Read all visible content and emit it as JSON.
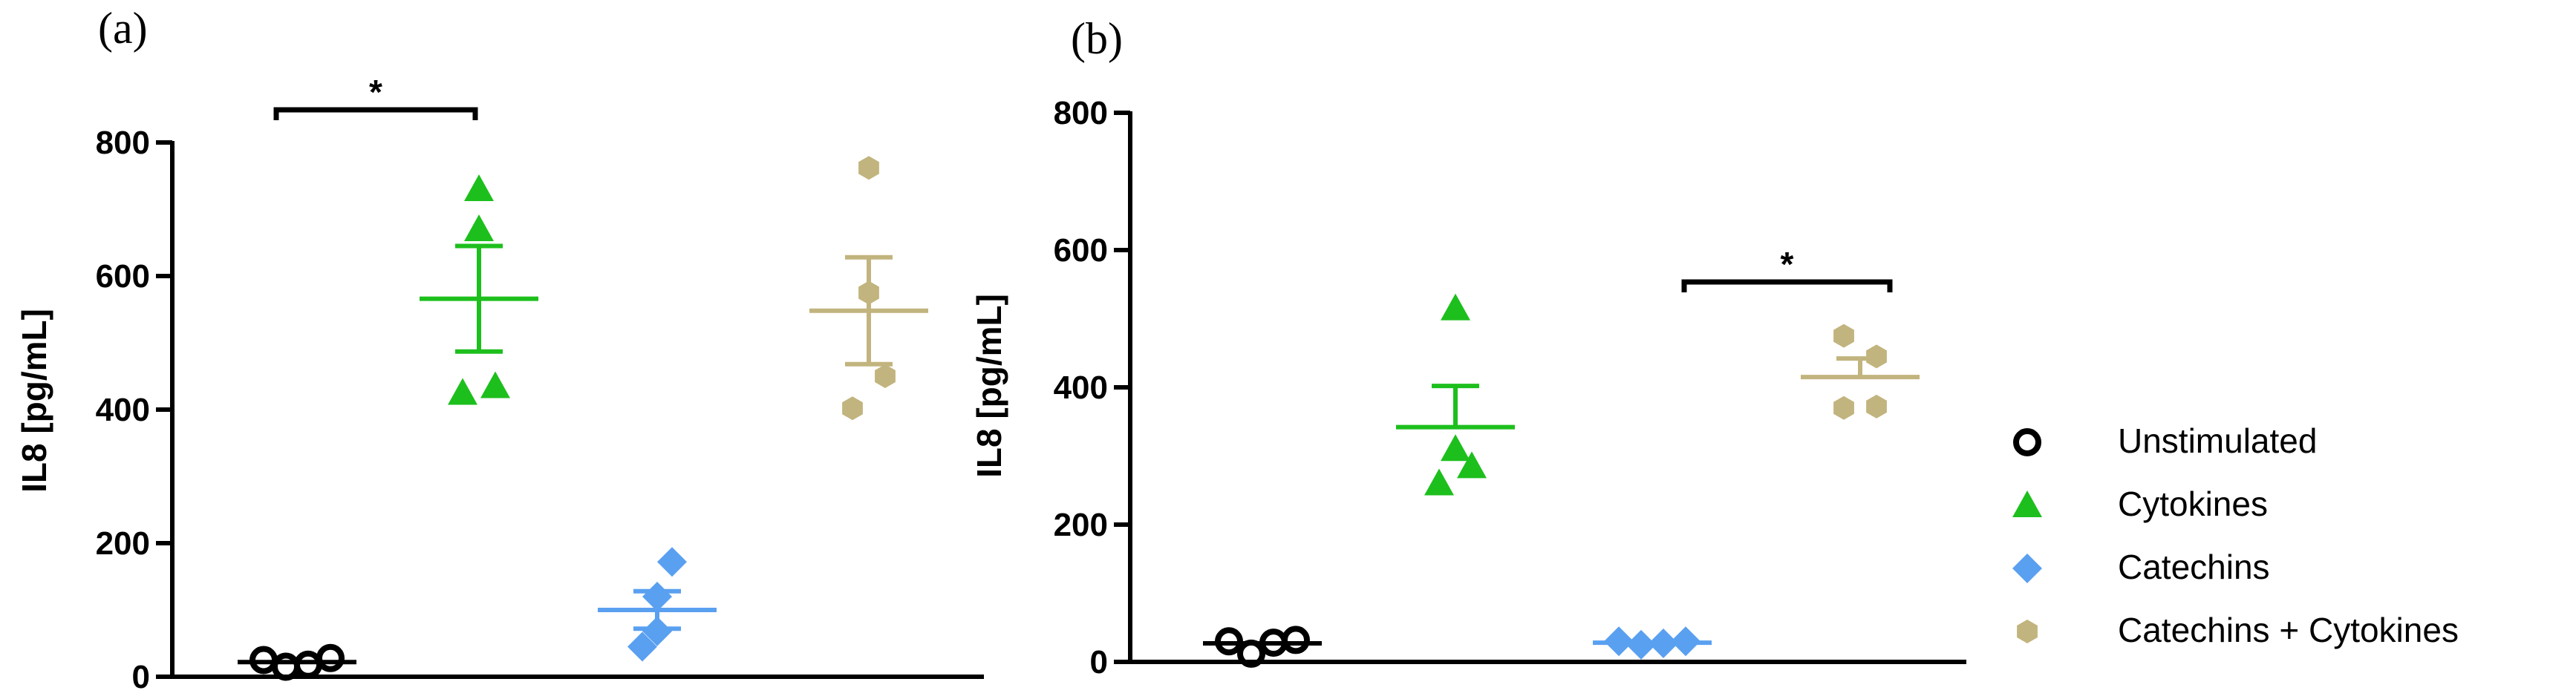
{
  "chart_data": [
    {
      "type": "scatter",
      "panel_label": "(a)",
      "ylabel": "IL8 [pg/mL]",
      "ylim": [
        0,
        800
      ],
      "yticks": [
        "0",
        "200",
        "400",
        "600",
        "800"
      ],
      "groups": [
        {
          "name": "Unstimulated",
          "values": [
            25,
            15,
            18,
            28
          ],
          "mean": 22,
          "sem_upper": 22,
          "sem_lower": 22
        },
        {
          "name": "Cytokines",
          "values": [
            730,
            670,
            425,
            435
          ],
          "mean": 566,
          "sem_upper": 645,
          "sem_lower": 487
        },
        {
          "name": "Catechins",
          "values": [
            172,
            120,
            45,
            68
          ],
          "mean": 100,
          "sem_upper": 128,
          "sem_lower": 72
        },
        {
          "name": "Catechins + Cytokines",
          "values": [
            762,
            575,
            402,
            450
          ],
          "mean": 548,
          "sem_upper": 628,
          "sem_lower": 468
        }
      ],
      "significance": [
        {
          "from": 0,
          "to": 1,
          "label": "*"
        }
      ]
    },
    {
      "type": "scatter",
      "panel_label": "(b)",
      "ylabel": "IL8 [pg/mL]",
      "ylim": [
        0,
        800
      ],
      "yticks": [
        "0",
        "200",
        "400",
        "600",
        "800"
      ],
      "groups": [
        {
          "name": "Unstimulated",
          "values": [
            30,
            12,
            28,
            32
          ],
          "mean": 27,
          "sem_upper": 27,
          "sem_lower": 27
        },
        {
          "name": "Cytokines",
          "values": [
            515,
            310,
            260,
            285
          ],
          "mean": 342,
          "sem_upper": 402,
          "sem_lower": 342
        },
        {
          "name": "Catechins",
          "values": [
            30,
            25,
            27,
            30
          ],
          "mean": 28,
          "sem_upper": 28,
          "sem_lower": 28
        },
        {
          "name": "Catechins + Cytokines",
          "values": [
            475,
            445,
            370,
            372
          ],
          "mean": 415,
          "sem_upper": 442,
          "sem_lower": 415
        }
      ],
      "significance": [
        {
          "from": 2,
          "to": 3,
          "label": "*"
        }
      ]
    }
  ],
  "legend": {
    "placement": "right",
    "items": [
      {
        "label": "Unstimulated",
        "marker": "circle-open",
        "color": "#000000"
      },
      {
        "label": "Cytokines",
        "marker": "triangle",
        "color": "#1dbf1d"
      },
      {
        "label": "Catechins",
        "marker": "diamond",
        "color": "#5aa0f0"
      },
      {
        "label": "Catechins + Cytokines",
        "marker": "hexagon",
        "color": "#c2b47e"
      }
    ]
  },
  "colors": {
    "unstimulated": "#000000",
    "cytokines": "#1dbf1d",
    "catechins": "#5aa0f0",
    "catechins_cytokines": "#c2b47e",
    "axis": "#000000"
  }
}
